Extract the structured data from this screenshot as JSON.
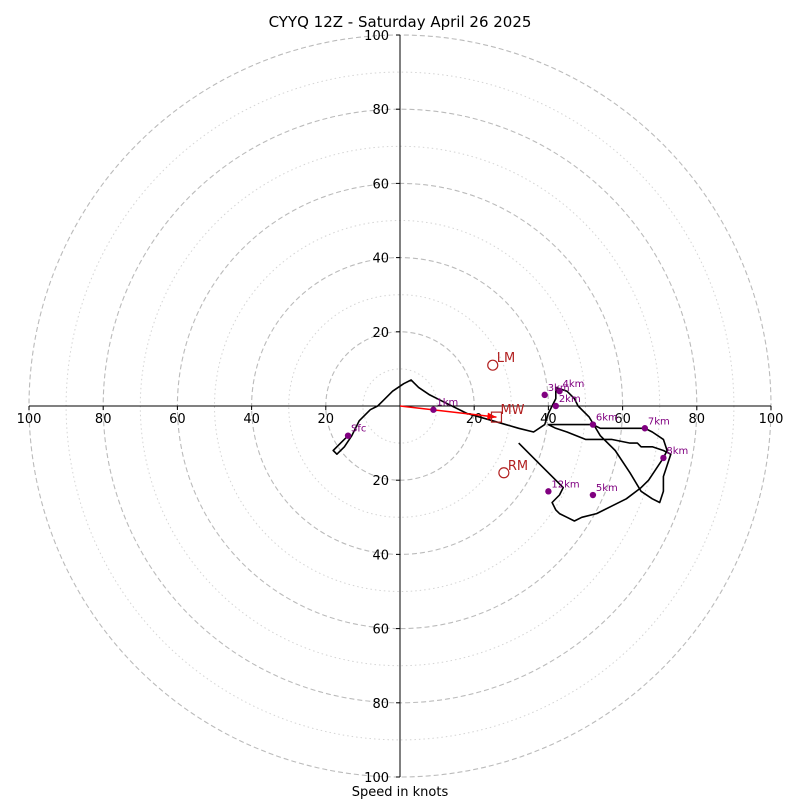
{
  "chart_data": {
    "type": "line",
    "title": "CYYQ 12Z - Saturday April 26 2025",
    "xlabel": "Speed in knots",
    "ylabel": "",
    "xlim": [
      -100,
      100
    ],
    "ylim": [
      -100,
      100
    ],
    "rings": [
      20,
      40,
      60,
      80,
      100
    ],
    "minor_rings": [
      10,
      30,
      50,
      70,
      90
    ],
    "tick_labels": [
      "100",
      "80",
      "60",
      "40",
      "20",
      "20",
      "40",
      "60",
      "80",
      "100"
    ],
    "y_tick_labels": [
      "100",
      "80",
      "60",
      "40",
      "20",
      "20",
      "40",
      "60",
      "80",
      "100"
    ],
    "grid": true,
    "colors": {
      "hodograph": "#000000",
      "height_marker": "#800080",
      "motion": "#b22222",
      "shear_vector": "#ff0000",
      "ring": "#bbbbbb"
    },
    "hodograph": {
      "u": [
        -14,
        -16,
        -18,
        -17,
        -15,
        -13,
        -11,
        -8,
        -6,
        -4,
        -2,
        1,
        3,
        5,
        8,
        12,
        18,
        25,
        32,
        36,
        39,
        40,
        41,
        42,
        42,
        42,
        45,
        47,
        48,
        51,
        54,
        58,
        62,
        65,
        68,
        70,
        71,
        71,
        72,
        73,
        71,
        68,
        65,
        64,
        62,
        57,
        50,
        45,
        42,
        40,
        41,
        42,
        46,
        50,
        52,
        54,
        57,
        60,
        62,
        64,
        66,
        68,
        71,
        72,
        71,
        69,
        67,
        65,
        61,
        57,
        53,
        49,
        47,
        45,
        43,
        42,
        41,
        43,
        44,
        42,
        40,
        38,
        32
      ],
      "v": [
        -8,
        -10,
        -12,
        -13,
        -11,
        -8,
        -4,
        -1,
        0,
        2,
        4,
        6,
        7,
        5,
        3,
        1,
        -2,
        -4,
        -6,
        -7,
        -5,
        -2,
        0,
        2,
        4,
        5,
        4,
        2,
        0,
        -3,
        -8,
        -12,
        -18,
        -23,
        -25,
        -26,
        -23,
        -19,
        -16,
        -13,
        -12,
        -11,
        -11,
        -10,
        -10,
        -9,
        -9,
        -7,
        -6,
        -5,
        -5,
        -5,
        -5,
        -5,
        -5,
        -6,
        -6,
        -6,
        -6,
        -6,
        -6,
        -7,
        -9,
        -12,
        -14,
        -17,
        -20,
        -22,
        -25,
        -27,
        -29,
        -30,
        -31,
        -30,
        -29,
        -28,
        -26,
        -24,
        -22,
        -20,
        -18,
        -16,
        -10
      ]
    },
    "height_markers": [
      {
        "label": "Sfc",
        "u": -14,
        "v": -8
      },
      {
        "label": "1km",
        "u": 9,
        "v": -1
      },
      {
        "label": "2km",
        "u": 42,
        "v": 0
      },
      {
        "label": "3km",
        "u": 39,
        "v": 3
      },
      {
        "label": "4km",
        "u": 43,
        "v": 4
      },
      {
        "label": "5km",
        "u": 52,
        "v": -24
      },
      {
        "label": "6km",
        "u": 52,
        "v": -5
      },
      {
        "label": "7km",
        "u": 66,
        "v": -6
      },
      {
        "label": "8km",
        "u": 71,
        "v": -14
      },
      {
        "label": "12km",
        "u": 40,
        "v": -23
      }
    ],
    "motions": [
      {
        "label": "LM",
        "u": 25,
        "v": 11,
        "marker": "circle"
      },
      {
        "label": "RM",
        "u": 28,
        "v": -18,
        "marker": "circle"
      },
      {
        "label": "MW",
        "u": 26,
        "v": -3,
        "marker": "square"
      }
    ],
    "shear_vector": {
      "from": [
        0,
        0
      ],
      "to": [
        26,
        -3
      ]
    }
  }
}
